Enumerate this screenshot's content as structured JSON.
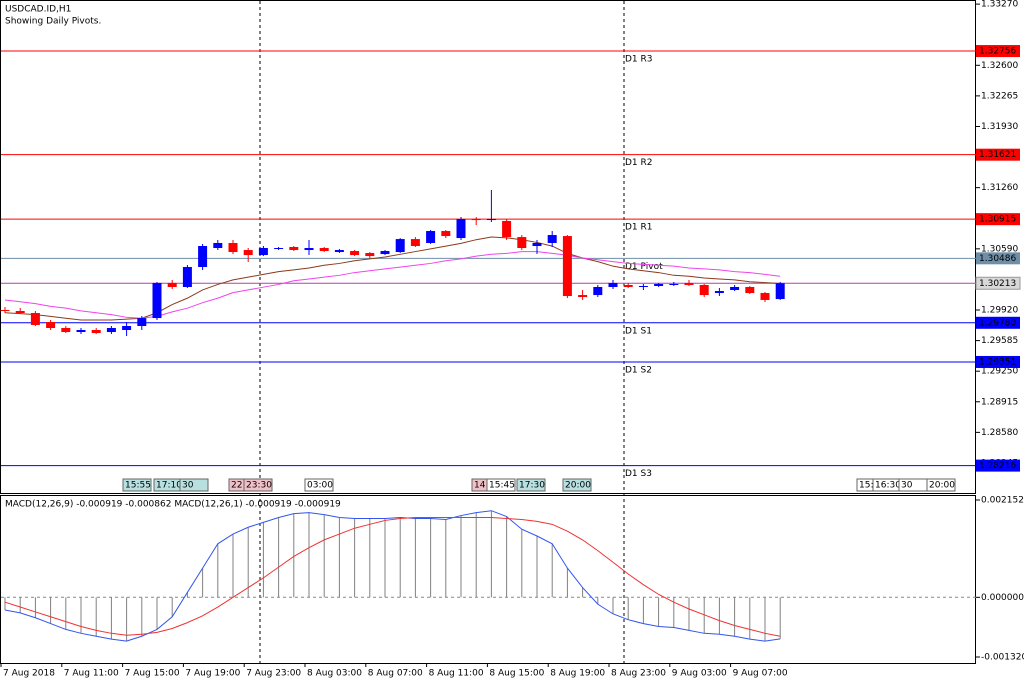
{
  "chart_data": [
    {
      "type": "candlestick",
      "title": "USDCAD.ID,H1",
      "subtitle": "Showing Daily Pivots.",
      "categories": [
        "7 Aug 2018",
        null,
        null,
        null,
        "7 Aug 11:00",
        null,
        null,
        null,
        "7 Aug 15:00",
        null,
        null,
        null,
        "7 Aug 19:00",
        null,
        null,
        null,
        "7 Aug 23:00",
        null,
        null,
        null,
        "8 Aug 03:00",
        null,
        null,
        null,
        "8 Aug 07:00",
        null,
        null,
        null,
        "8 Aug 11:00",
        null,
        null,
        null,
        "8 Aug 15:00",
        null,
        null,
        null,
        "8 Aug 19:00",
        null,
        null,
        null,
        "8 Aug 23:00",
        null,
        null,
        null,
        "9 Aug 03:00",
        null,
        null,
        null,
        "9 Aug 07:00",
        null,
        null,
        null
      ],
      "open": [
        1.2992,
        1.29909,
        1.29887,
        1.29788,
        1.29723,
        1.29679,
        1.29701,
        1.29679,
        1.29701,
        1.29745,
        1.29832,
        1.30216,
        1.30172,
        1.30391,
        1.30599,
        1.30654,
        1.30577,
        1.30522,
        1.30588,
        1.3061,
        1.30577,
        1.30599,
        1.30555,
        1.30566,
        1.30544,
        1.30533,
        1.30555,
        1.30697,
        1.30654,
        1.30785,
        1.30708,
        1.30916,
        1.30906,
        1.30895,
        1.30719,
        1.30621,
        1.30654,
        1.3073,
        1.30084,
        1.30084,
        1.30172,
        1.30194,
        1.30172,
        1.30183,
        1.30194,
        1.30216,
        1.30194,
        1.30106,
        1.30139,
        1.30172,
        1.30106,
        1.3004
      ],
      "high": [
        1.29953,
        1.29942,
        1.29909,
        1.2981,
        1.29745,
        1.29723,
        1.29723,
        1.29745,
        1.29788,
        1.29854,
        1.30227,
        1.30249,
        1.30413,
        1.30643,
        1.30687,
        1.30687,
        1.30599,
        1.30621,
        1.3061,
        1.30621,
        1.30687,
        1.3061,
        1.30588,
        1.30577,
        1.30555,
        1.30577,
        1.30708,
        1.30719,
        1.30796,
        1.30796,
        1.30938,
        1.30938,
        1.31234,
        1.30916,
        1.30741,
        1.30687,
        1.30785,
        1.30741,
        1.30139,
        1.30194,
        1.30249,
        1.30216,
        1.30205,
        1.30216,
        1.30227,
        1.30249,
        1.30205,
        1.30161,
        1.30194,
        1.30183,
        1.30117,
        1.30227
      ],
      "low": [
        1.29887,
        1.29876,
        1.29745,
        1.29701,
        1.29668,
        1.29657,
        1.29657,
        1.29657,
        1.29635,
        1.29701,
        1.2981,
        1.3015,
        1.30161,
        1.30358,
        1.30577,
        1.30533,
        1.30446,
        1.30511,
        1.30577,
        1.30566,
        1.30522,
        1.30555,
        1.30544,
        1.30511,
        1.30489,
        1.30522,
        1.30544,
        1.3061,
        1.30643,
        1.30708,
        1.30687,
        1.30851,
        1.30884,
        1.30687,
        1.30577,
        1.30533,
        1.3061,
        1.30051,
        1.3003,
        1.30062,
        1.3015,
        1.30161,
        1.30139,
        1.30172,
        1.30183,
        1.30183,
        1.30062,
        1.30073,
        1.30128,
        1.30095,
        1.30008,
        1.3003
      ],
      "close": [
        1.29909,
        1.29887,
        1.29756,
        1.29723,
        1.29679,
        1.29701,
        1.29668,
        1.29723,
        1.29745,
        1.29832,
        1.30216,
        1.30172,
        1.30391,
        1.30621,
        1.30654,
        1.30555,
        1.30522,
        1.30599,
        1.30599,
        1.30577,
        1.30599,
        1.30566,
        1.30577,
        1.30522,
        1.30511,
        1.30566,
        1.30697,
        1.30621,
        1.30785,
        1.3073,
        1.30916,
        1.30906,
        1.30916,
        1.30719,
        1.30599,
        1.30654,
        1.30741,
        1.30073,
        1.30062,
        1.30172,
        1.30216,
        1.30172,
        1.30183,
        1.30205,
        1.30205,
        1.30194,
        1.30084,
        1.30128,
        1.30172,
        1.30106,
        1.3003,
        1.30213
      ],
      "up_color": "#0000ff",
      "down_color": "#ff0000",
      "series": [
        {
          "color": "#8b3a1a",
          "values": [
            1.2989,
            1.2988,
            1.2987,
            1.2985,
            1.2983,
            1.2981,
            1.2981,
            1.2981,
            1.2982,
            1.2983,
            1.2989,
            1.2998,
            1.3005,
            1.3014,
            1.302,
            1.3025,
            1.3028,
            1.3031,
            1.3034,
            1.3036,
            1.3038,
            1.3041,
            1.3043,
            1.3046,
            1.3048,
            1.305,
            1.3053,
            1.3056,
            1.3059,
            1.3062,
            1.3065,
            1.3069,
            1.3072,
            1.3071,
            1.3069,
            1.3066,
            1.3062,
            1.3054,
            1.3049,
            1.3045,
            1.304,
            1.3037,
            1.3035,
            1.3033,
            1.303,
            1.3029,
            1.3027,
            1.3026,
            1.3025,
            1.3023,
            1.3022,
            1.3021
          ]
        },
        {
          "color": "#ee44ee",
          "values": [
            1.3003,
            1.3001,
            1.2999,
            1.2996,
            1.2994,
            1.2991,
            1.2989,
            1.2987,
            1.2984,
            1.2983,
            1.2985,
            1.299,
            1.2994,
            1.3,
            1.3005,
            1.3011,
            1.3014,
            1.3017,
            1.302,
            1.3024,
            1.3026,
            1.3028,
            1.303,
            1.3033,
            1.3035,
            1.3037,
            1.3039,
            1.3041,
            1.3043,
            1.3046,
            1.3048,
            1.3051,
            1.3053,
            1.3054,
            1.3056,
            1.3056,
            1.3054,
            1.3052,
            1.3049,
            1.3047,
            1.3045,
            1.3043,
            1.3042,
            1.3041,
            1.304,
            1.3038,
            1.3037,
            1.3036,
            1.3034,
            1.3033,
            1.3031,
            1.3029
          ]
        }
      ],
      "pivots": [
        {
          "name": "D1 R3",
          "value": 1.32756,
          "label": "1.32756",
          "color": "#ff0000"
        },
        {
          "name": "D1 R2",
          "value": 1.31621,
          "label": "1.31621",
          "color": "#ff0000"
        },
        {
          "name": "D1 R1",
          "value": 1.30915,
          "label": "1.30915",
          "color": "#ff0000"
        },
        {
          "name": "D1 Pivot",
          "value": 1.30486,
          "label": "1.30486",
          "color": "#6f8fa8"
        },
        {
          "name": "D1 S1",
          "value": 1.2978,
          "label": "1.29780",
          "color": "#0000ff"
        },
        {
          "name": "D1 S2",
          "value": 1.29351,
          "label": "1.29351",
          "color": "#0000ff"
        },
        {
          "name": "D1 S3",
          "value": 1.28216,
          "label": "1.28216",
          "color": "#0000ff"
        }
      ],
      "bid": {
        "value": 1.30213,
        "label": "1.30213",
        "color": "#b040b0"
      },
      "events": [
        "15:55",
        "17:10",
        "30",
        "22:",
        "23:30",
        "03:00",
        "14:",
        "15:45",
        "17:30",
        "20:00",
        "15:",
        "16:30",
        "30",
        "20:00"
      ],
      "ylim": [
        1.27916,
        1.33315
      ],
      "yticks": [
        {
          "value": 1.3327,
          "label": "1.33270"
        },
        {
          "value": 1.326,
          "label": "1.32600"
        },
        {
          "value": 1.32265,
          "label": "1.32265"
        },
        {
          "value": 1.3193,
          "label": "1.31930"
        },
        {
          "value": 1.3126,
          "label": "1.31260"
        },
        {
          "value": 1.3059,
          "label": "1.30590"
        },
        {
          "value": 1.2992,
          "label": "1.29920"
        },
        {
          "value": 1.29585,
          "label": "1.29585"
        },
        {
          "value": 1.2925,
          "label": "1.29250"
        },
        {
          "value": 1.28915,
          "label": "1.28915"
        },
        {
          "value": 1.2858,
          "label": "1.28580"
        },
        {
          "value": 1.28245,
          "label": "1.28245"
        }
      ]
    },
    {
      "type": "macd",
      "title": "MACD(12,26,9) -0.000919 -0.000862 MACD(12,26,1) -0.000919 -0.000919",
      "histogram": {
        "color": "#808080",
        "values": [
          -0.00028,
          -0.000344,
          -0.000452,
          -0.000581,
          -0.00071,
          -0.000796,
          -0.000861,
          -0.000925,
          -0.000968,
          -0.000861,
          -0.00071,
          -0.00043,
          0.000108,
          0.000646,
          0.001184,
          0.001399,
          0.001549,
          0.001657,
          0.001765,
          0.001851,
          0.001872,
          0.001829,
          0.001765,
          0.001743,
          0.001743,
          0.001743,
          0.001765,
          0.001743,
          0.001743,
          0.001722,
          0.001808,
          0.001872,
          0.001915,
          0.001786,
          0.001506,
          0.001356,
          0.001184,
          0.000646,
          0.000215,
          -0.000151,
          -0.000366,
          -0.000495,
          -0.000581,
          -0.000646,
          -0.000667,
          -0.000732,
          -0.000796,
          -0.000818,
          -0.000861,
          -0.000925,
          -0.000968,
          -0.000919
        ]
      },
      "series": [
        {
          "color": "#3355ee",
          "values": [
            -0.00028,
            -0.000344,
            -0.000452,
            -0.000581,
            -0.00071,
            -0.000796,
            -0.000861,
            -0.000925,
            -0.000968,
            -0.000861,
            -0.00071,
            -0.00043,
            0.000108,
            0.000646,
            0.001184,
            0.001399,
            0.001549,
            0.001657,
            0.001765,
            0.001851,
            0.001872,
            0.001829,
            0.001765,
            0.001743,
            0.001743,
            0.001743,
            0.001765,
            0.001743,
            0.001743,
            0.001722,
            0.001808,
            0.001872,
            0.001915,
            0.001786,
            0.001506,
            0.001356,
            0.001184,
            0.000646,
            0.000215,
            -0.000151,
            -0.000366,
            -0.000495,
            -0.000581,
            -0.000646,
            -0.000667,
            -0.000732,
            -0.000796,
            -0.000818,
            -0.000861,
            -0.000925,
            -0.000968,
            -0.000919
          ]
        },
        {
          "color": "#ee3333",
          "values": [
            -0.000108,
            -0.000215,
            -0.000323,
            -0.00043,
            -0.000538,
            -0.000646,
            -0.000732,
            -0.000796,
            -0.000839,
            -0.000818,
            -0.000775,
            -0.000689,
            -0.00056,
            -0.000409,
            -0.000215,
            0,
            0.000215,
            0.00043,
            0.000667,
            0.000904,
            0.001098,
            0.00127,
            0.001399,
            0.001528,
            0.001614,
            0.0017,
            0.001743,
            0.001765,
            0.001765,
            0.001765,
            0.001765,
            0.001765,
            0.001765,
            0.001743,
            0.001722,
            0.001679,
            0.001614,
            0.001463,
            0.00127,
            0.001033,
            0.000775,
            0.000516,
            0.00028,
            6.5e-05,
            -0.000108,
            -0.000258,
            -0.000387,
            -0.000516,
            -0.000624,
            -0.00071,
            -0.000796,
            -0.000862
          ]
        }
      ],
      "ylim": [
        -0.00132,
        0.002152
      ],
      "yticks": [
        {
          "value": 0.002152,
          "label": "0.002152"
        },
        {
          "value": 0,
          "label": "0.000000"
        },
        {
          "value": -0.00132,
          "label": "-0.001320"
        }
      ]
    }
  ]
}
